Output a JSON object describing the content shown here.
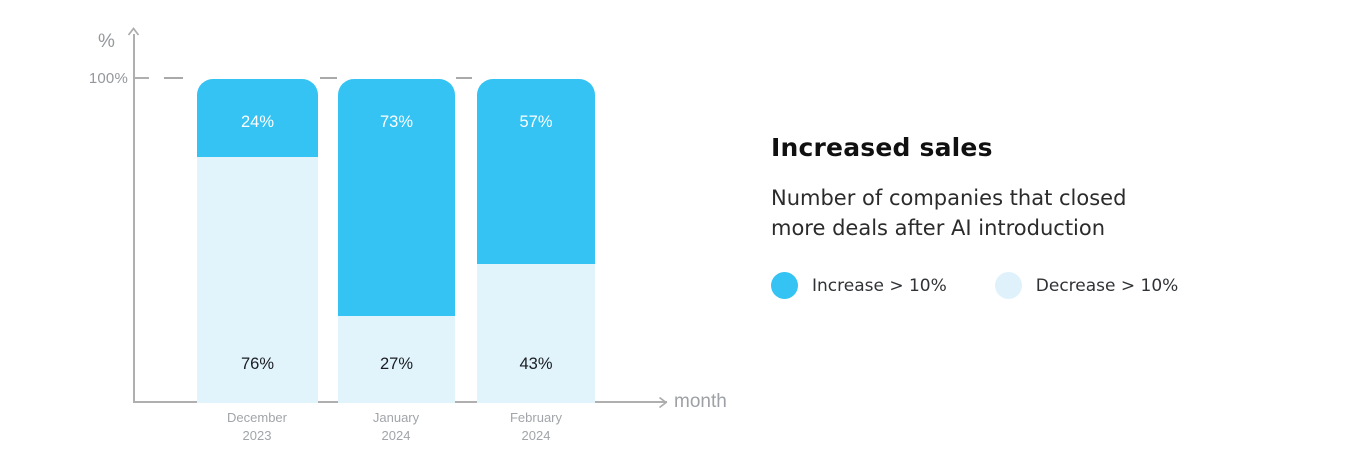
{
  "chart": {
    "y_axis_unit": "%",
    "y_tick_label": "100%",
    "x_axis_title": "month",
    "bars": [
      {
        "increase_label": "24%",
        "decrease_label": "76%",
        "month": "December",
        "year": "2023"
      },
      {
        "increase_label": "73%",
        "decrease_label": "27%",
        "month": "January",
        "year": "2024"
      },
      {
        "increase_label": "57%",
        "decrease_label": "43%",
        "month": "February",
        "year": "2024"
      }
    ]
  },
  "panel": {
    "title": "Increased sales",
    "subtitle_line1": "Number of companies that closed",
    "subtitle_line2": "more deals after AI introduction",
    "legend": [
      {
        "label": "Increase > 10%",
        "color": "#34C3F3"
      },
      {
        "label": "Decrease > 10%",
        "color": "#DFF2FB"
      }
    ]
  },
  "chart_data": {
    "type": "bar",
    "subtype": "stacked-percentage",
    "title": "Increased sales",
    "subtitle": "Number of companies that closed more deals after AI introduction",
    "categories": [
      "December 2023",
      "January 2024",
      "February 2024"
    ],
    "series": [
      {
        "name": "Increase > 10%",
        "color": "#34C3F3",
        "values": [
          24,
          73,
          57
        ]
      },
      {
        "name": "Decrease > 10%",
        "color": "#E1F4FC",
        "values": [
          76,
          27,
          43
        ]
      }
    ],
    "xlabel": "month",
    "ylabel": "%",
    "ylim": [
      0,
      100
    ],
    "yticks": [
      "100%"
    ],
    "grid": "dashed line at 100% only",
    "legend_position": "right of chart",
    "bar_value_labels": "increase % shown in white near bar top, decrease % shown in dark text near bar bottom"
  },
  "colors": {
    "increase": "#34C3F3",
    "decrease": "#E1F4FC",
    "axis": "#AFAFAF",
    "muted_text": "#9DA1A5",
    "dark_text": "#1A1D21",
    "title_text": "#101010"
  }
}
